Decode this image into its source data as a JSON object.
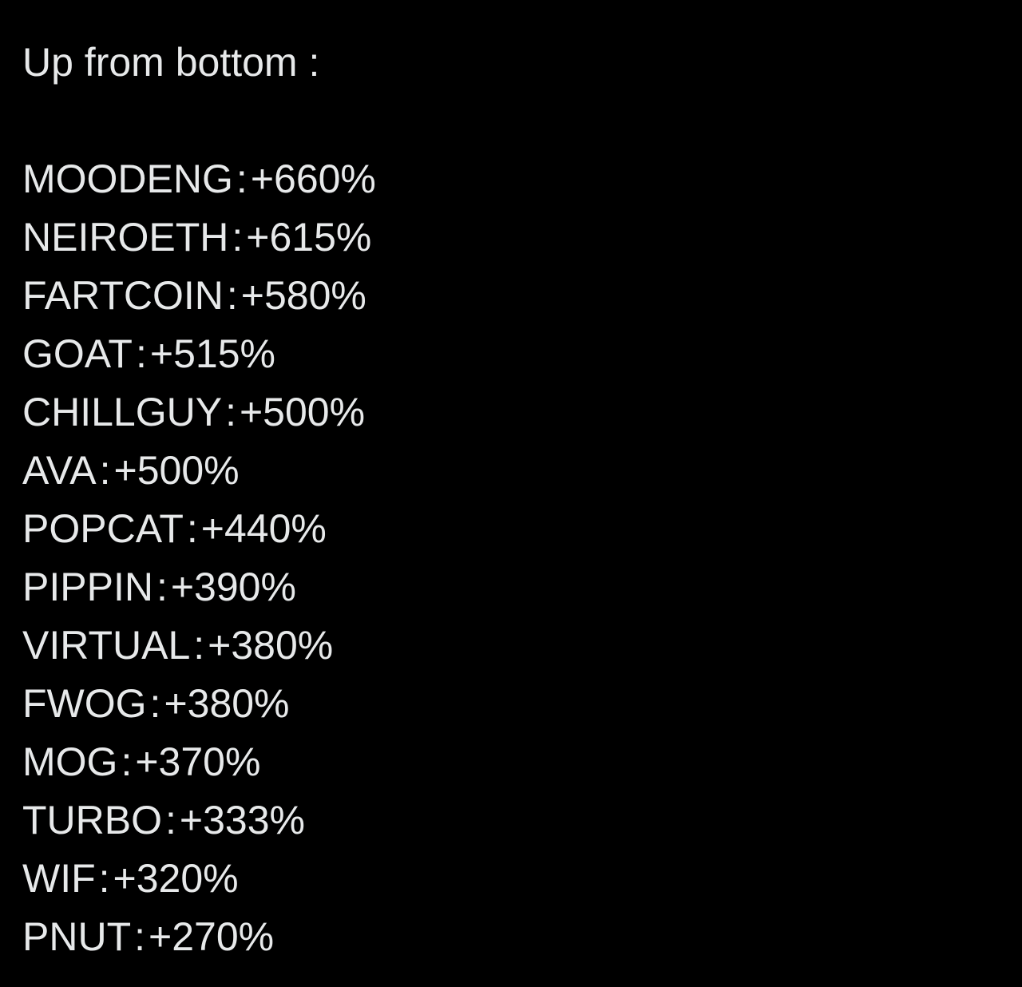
{
  "post": {
    "heading": "Up from bottom :",
    "separator": ":",
    "rows": [
      {
        "ticker": "MOODENG",
        "change": "+660%"
      },
      {
        "ticker": "NEIROETH",
        "change": "+615%"
      },
      {
        "ticker": "FARTCOIN",
        "change": "+580%"
      },
      {
        "ticker": "GOAT",
        "change": "+515%"
      },
      {
        "ticker": "CHILLGUY",
        "change": "+500%"
      },
      {
        "ticker": "AVA",
        "change": "+500%"
      },
      {
        "ticker": "POPCAT",
        "change": "+440%"
      },
      {
        "ticker": "PIPPIN",
        "change": "+390%"
      },
      {
        "ticker": "VIRTUAL",
        "change": "+380%"
      },
      {
        "ticker": "FWOG",
        "change": "+380%"
      },
      {
        "ticker": "MOG",
        "change": "+370%"
      },
      {
        "ticker": "TURBO",
        "change": "+333%"
      },
      {
        "ticker": "WIF",
        "change": "+320%"
      },
      {
        "ticker": "PNUT",
        "change": "+270%"
      }
    ]
  },
  "colors": {
    "background": "#000000",
    "text": "#e7e9ea"
  }
}
